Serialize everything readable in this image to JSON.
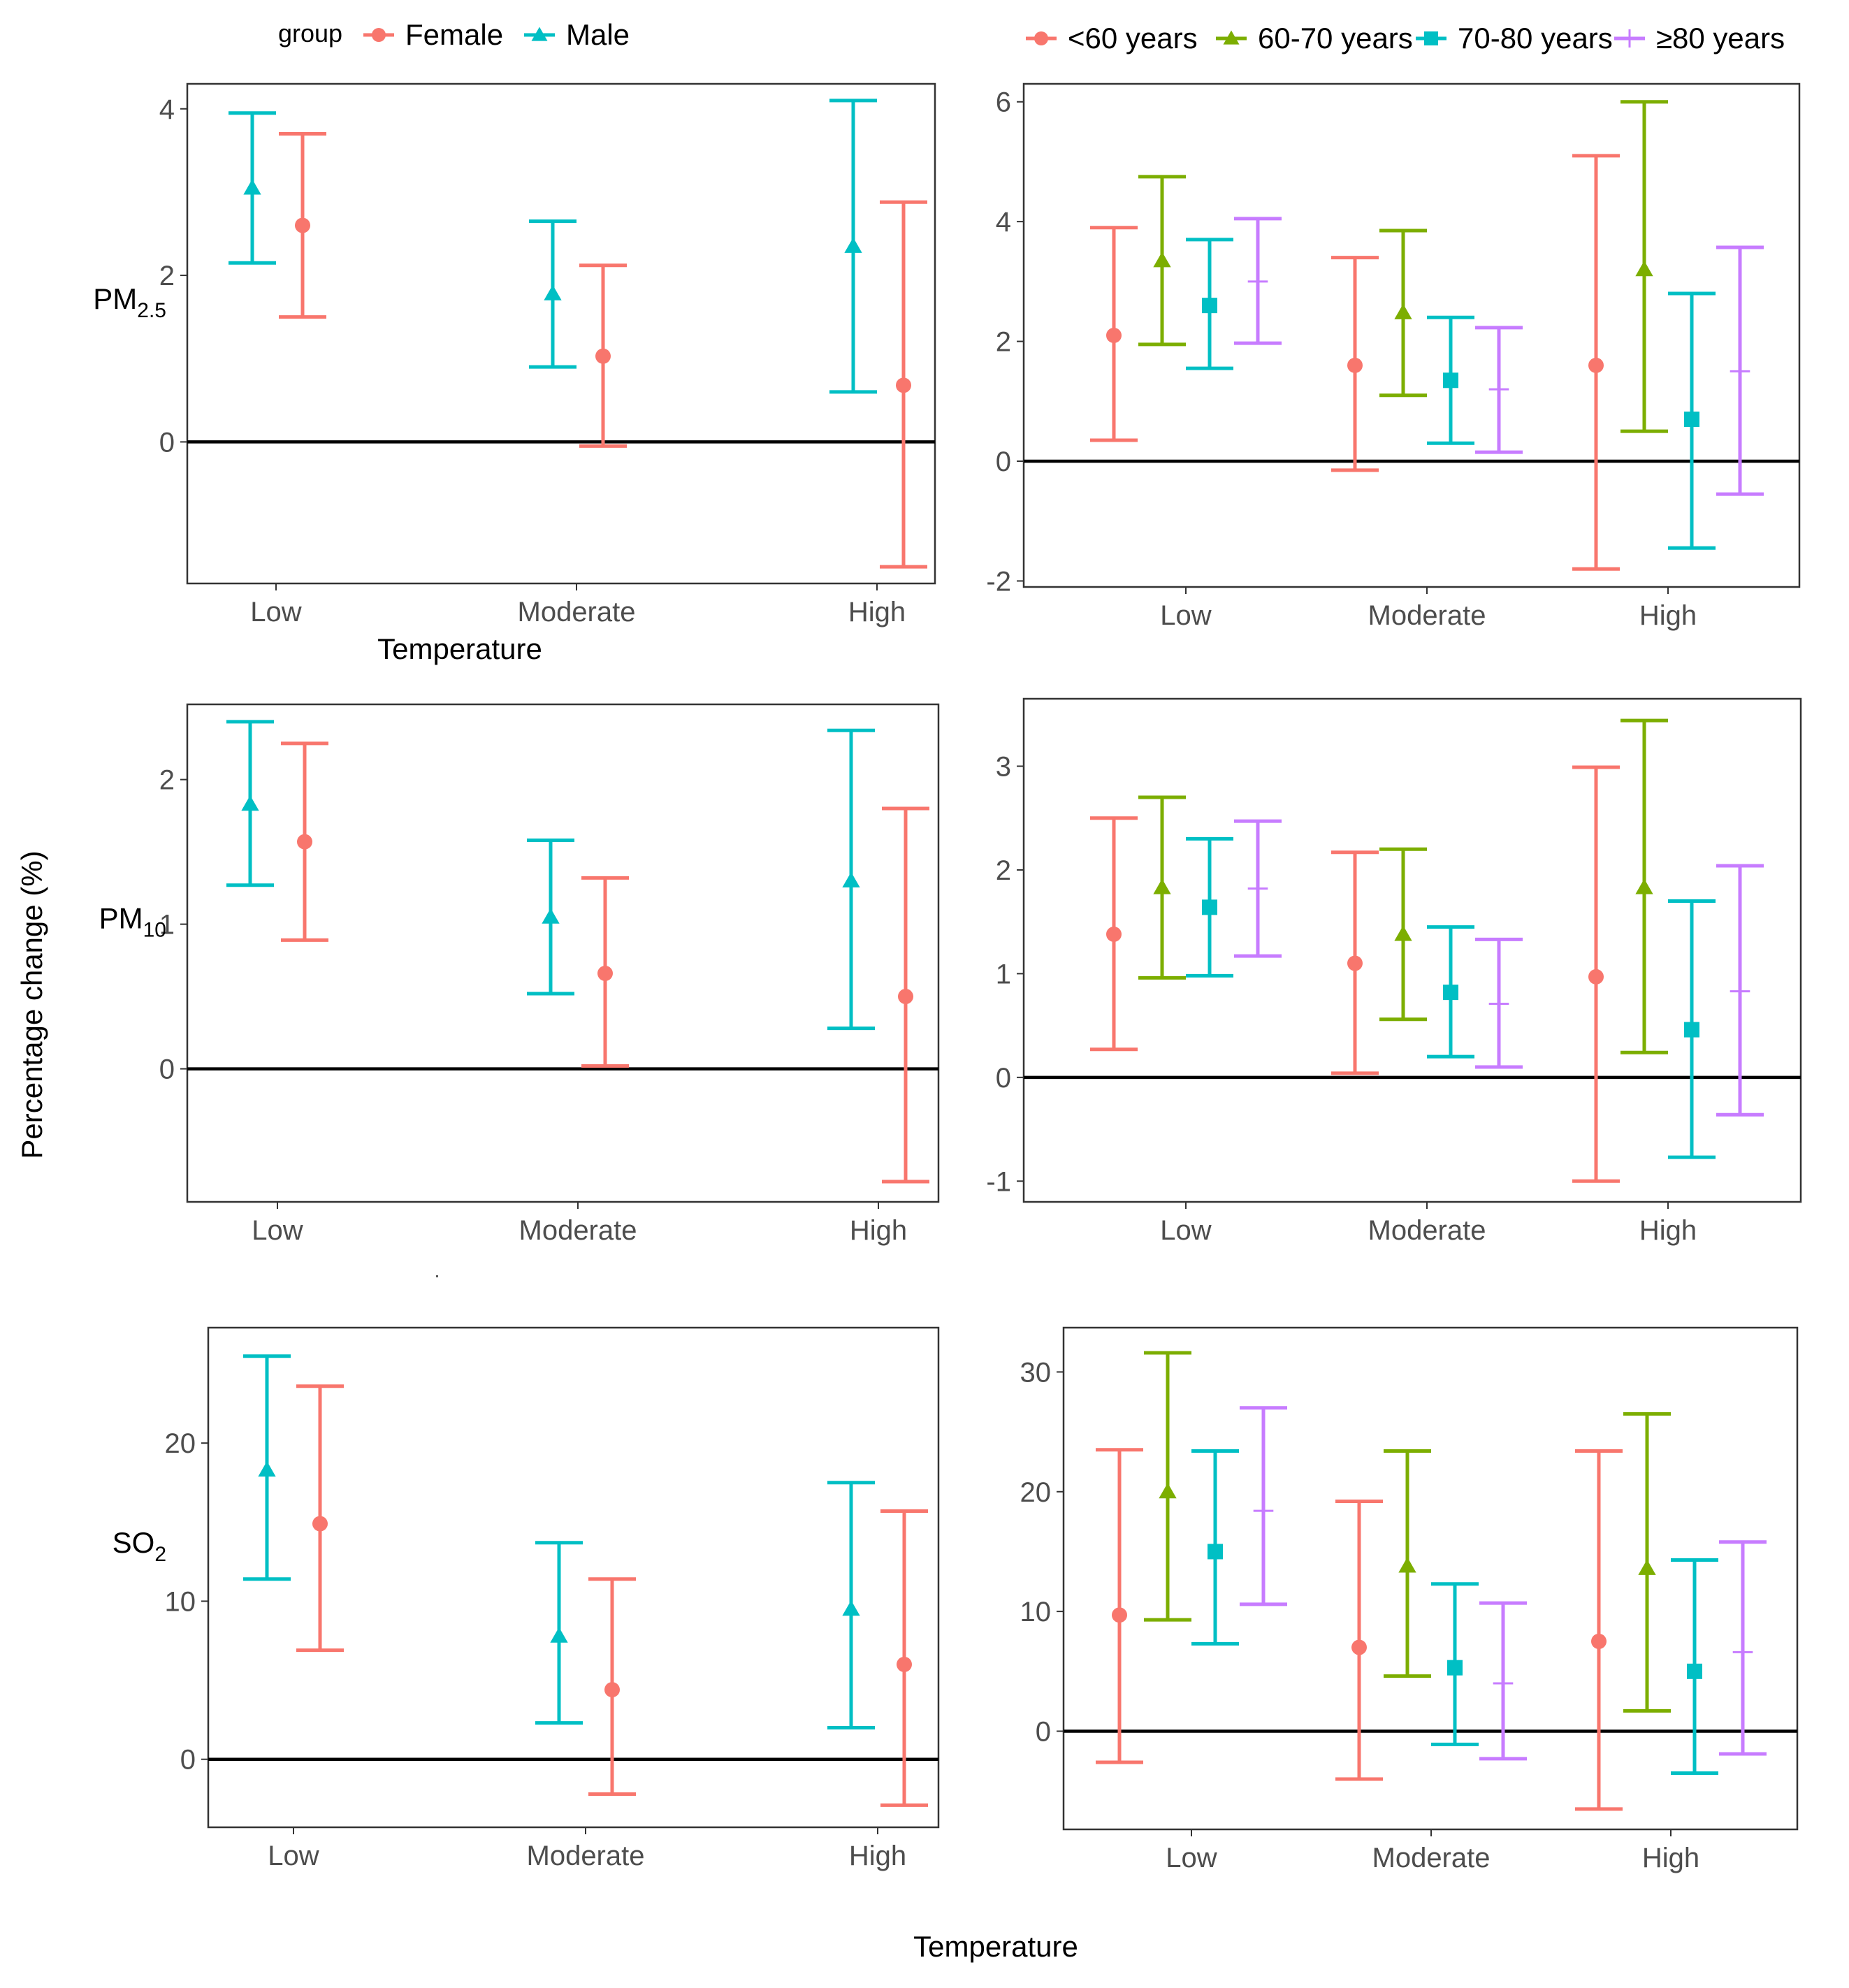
{
  "figure": {
    "y_axis_title": "Percentage change (%)",
    "x_axis_title": "Temperature"
  },
  "legends": {
    "sex": {
      "title": "group",
      "items": [
        {
          "label": "Female",
          "color": "#F8766D",
          "shape": "circle"
        },
        {
          "label": "Male",
          "color": "#00BFC4",
          "shape": "triangle"
        }
      ]
    },
    "age": {
      "items": [
        {
          "label": "<60 years",
          "color": "#F8766D",
          "shape": "circle"
        },
        {
          "label": "60-70 years",
          "color": "#7CAE00",
          "shape": "triangle"
        },
        {
          "label": "70-80 years",
          "color": "#00BFC4",
          "shape": "square"
        },
        {
          "label": "≥80 years",
          "color": "#C77CFF",
          "shape": "plus"
        }
      ]
    }
  },
  "chart_data": [
    {
      "id": "pm25-sex",
      "type": "errorbar",
      "pollutant_base": "PM",
      "pollutant_sub": "2.5",
      "xlabel": "Temperature",
      "categories": [
        "Low",
        "Moderate",
        "High"
      ],
      "ylim": [
        -1.7,
        4.3
      ],
      "yticks": [
        0,
        2,
        4
      ],
      "yticklabels": [
        "0",
        "2",
        "4"
      ],
      "series": [
        {
          "name": "Male",
          "color": "#00BFC4",
          "shape": "triangle",
          "est": [
            3.05,
            1.78,
            2.35
          ],
          "lo": [
            2.15,
            0.9,
            0.6
          ],
          "hi": [
            3.95,
            2.65,
            4.1
          ]
        },
        {
          "name": "Female",
          "color": "#F8766D",
          "shape": "circle",
          "est": [
            2.6,
            1.03,
            0.68
          ],
          "lo": [
            1.5,
            -0.05,
            -1.5
          ],
          "hi": [
            3.7,
            2.12,
            2.88
          ]
        }
      ]
    },
    {
      "id": "pm25-age",
      "type": "errorbar",
      "xlabel": "",
      "categories": [
        "Low",
        "Moderate",
        "High"
      ],
      "ylim": [
        -2.1,
        6.3
      ],
      "yticks": [
        -2,
        0,
        2,
        4,
        6
      ],
      "yticklabels": [
        "-2",
        "0",
        "2",
        "4",
        "6"
      ],
      "series": [
        {
          "name": "<60 years",
          "color": "#F8766D",
          "shape": "circle",
          "est": [
            2.1,
            1.6,
            1.6
          ],
          "lo": [
            0.35,
            -0.15,
            -1.8
          ],
          "hi": [
            3.9,
            3.4,
            5.1
          ]
        },
        {
          "name": "60-70 years",
          "color": "#7CAE00",
          "shape": "triangle",
          "est": [
            3.35,
            2.48,
            3.2
          ],
          "lo": [
            1.95,
            1.1,
            0.5
          ],
          "hi": [
            4.75,
            3.85,
            6.0
          ]
        },
        {
          "name": "70-80 years",
          "color": "#00BFC4",
          "shape": "square",
          "est": [
            2.6,
            1.35,
            0.7
          ],
          "lo": [
            1.55,
            0.3,
            -1.45
          ],
          "hi": [
            3.7,
            2.4,
            2.8
          ]
        },
        {
          "name": "≥80 years",
          "color": "#C77CFF",
          "shape": "plus",
          "est": [
            3.0,
            1.2,
            1.5
          ],
          "lo": [
            1.97,
            0.15,
            -0.55
          ],
          "hi": [
            4.05,
            2.23,
            3.57
          ]
        }
      ]
    },
    {
      "id": "pm10-sex",
      "type": "errorbar",
      "pollutant_base": "PM",
      "pollutant_sub": "10",
      "xlabel": "",
      "categories": [
        "Low",
        "Moderate",
        "High"
      ],
      "ylim": [
        -0.92,
        2.52
      ],
      "yticks": [
        0,
        1,
        2
      ],
      "yticklabels": [
        "0",
        "1",
        "2"
      ],
      "series": [
        {
          "name": "Male",
          "color": "#00BFC4",
          "shape": "triangle",
          "est": [
            1.83,
            1.05,
            1.3
          ],
          "lo": [
            1.27,
            0.52,
            0.28
          ],
          "hi": [
            2.4,
            1.58,
            2.34
          ]
        },
        {
          "name": "Female",
          "color": "#F8766D",
          "shape": "circle",
          "est": [
            1.57,
            0.66,
            0.5
          ],
          "lo": [
            0.89,
            0.02,
            -0.78
          ],
          "hi": [
            2.25,
            1.32,
            1.8
          ]
        }
      ]
    },
    {
      "id": "pm10-age",
      "type": "errorbar",
      "xlabel": "",
      "categories": [
        "Low",
        "Moderate",
        "High"
      ],
      "ylim": [
        -1.2,
        3.65
      ],
      "yticks": [
        -1,
        0,
        1,
        2,
        3
      ],
      "yticklabels": [
        "-1",
        "0",
        "1",
        "2",
        "3"
      ],
      "series": [
        {
          "name": "<60 years",
          "color": "#F8766D",
          "shape": "circle",
          "est": [
            1.38,
            1.1,
            0.97
          ],
          "lo": [
            0.27,
            0.04,
            -1.0
          ],
          "hi": [
            2.5,
            2.17,
            2.99
          ]
        },
        {
          "name": "60-70 years",
          "color": "#7CAE00",
          "shape": "triangle",
          "est": [
            1.83,
            1.38,
            1.83
          ],
          "lo": [
            0.96,
            0.56,
            0.24
          ],
          "hi": [
            2.7,
            2.2,
            3.44
          ]
        },
        {
          "name": "70-80 years",
          "color": "#00BFC4",
          "shape": "square",
          "est": [
            1.64,
            0.82,
            0.46
          ],
          "lo": [
            0.98,
            0.2,
            -0.77
          ],
          "hi": [
            2.3,
            1.45,
            1.7
          ]
        },
        {
          "name": "≥80 years",
          "color": "#C77CFF",
          "shape": "plus",
          "est": [
            1.82,
            0.71,
            0.83
          ],
          "lo": [
            1.17,
            0.1,
            -0.36
          ],
          "hi": [
            2.47,
            1.33,
            2.04
          ]
        }
      ]
    },
    {
      "id": "so2-sex",
      "type": "errorbar",
      "pollutant_base": "SO",
      "pollutant_sub": "2",
      "xlabel": "",
      "categories": [
        "Low",
        "Moderate",
        "High"
      ],
      "ylim": [
        -4.3,
        27.3
      ],
      "yticks": [
        0,
        10,
        20
      ],
      "yticklabels": [
        "0",
        "10",
        "20"
      ],
      "series": [
        {
          "name": "Male",
          "color": "#00BFC4",
          "shape": "triangle",
          "est": [
            18.3,
            7.8,
            9.5
          ],
          "lo": [
            11.4,
            2.3,
            2.0
          ],
          "hi": [
            25.5,
            13.7,
            17.5
          ]
        },
        {
          "name": "Female",
          "color": "#F8766D",
          "shape": "circle",
          "est": [
            14.9,
            4.4,
            6.0
          ],
          "lo": [
            6.9,
            -2.2,
            -2.9
          ],
          "hi": [
            23.6,
            11.4,
            15.7
          ]
        }
      ]
    },
    {
      "id": "so2-age",
      "type": "errorbar",
      "xlabel": "",
      "categories": [
        "Low",
        "Moderate",
        "High"
      ],
      "ylim": [
        -8.2,
        33.7
      ],
      "yticks": [
        0,
        10,
        20,
        30
      ],
      "yticklabels": [
        "0",
        "10",
        "20",
        "30"
      ],
      "series": [
        {
          "name": "<60 years",
          "color": "#F8766D",
          "shape": "circle",
          "est": [
            9.7,
            7.0,
            7.5
          ],
          "lo": [
            -2.6,
            -4.0,
            -6.5
          ],
          "hi": [
            23.5,
            19.2,
            23.4
          ]
        },
        {
          "name": "60-70 years",
          "color": "#7CAE00",
          "shape": "triangle",
          "est": [
            20.0,
            13.8,
            13.6
          ],
          "lo": [
            9.3,
            4.6,
            1.7
          ],
          "hi": [
            31.6,
            23.4,
            26.5
          ]
        },
        {
          "name": "70-80 years",
          "color": "#00BFC4",
          "shape": "square",
          "est": [
            15.0,
            5.3,
            5.0
          ],
          "lo": [
            7.3,
            -1.1,
            -3.5
          ],
          "hi": [
            23.4,
            12.3,
            14.3
          ]
        },
        {
          "name": "≥80 years",
          "color": "#C77CFF",
          "shape": "plus",
          "est": [
            18.4,
            4.0,
            6.6
          ],
          "lo": [
            10.6,
            -2.3,
            -1.9
          ],
          "hi": [
            27.0,
            10.7,
            15.8
          ]
        }
      ]
    }
  ]
}
